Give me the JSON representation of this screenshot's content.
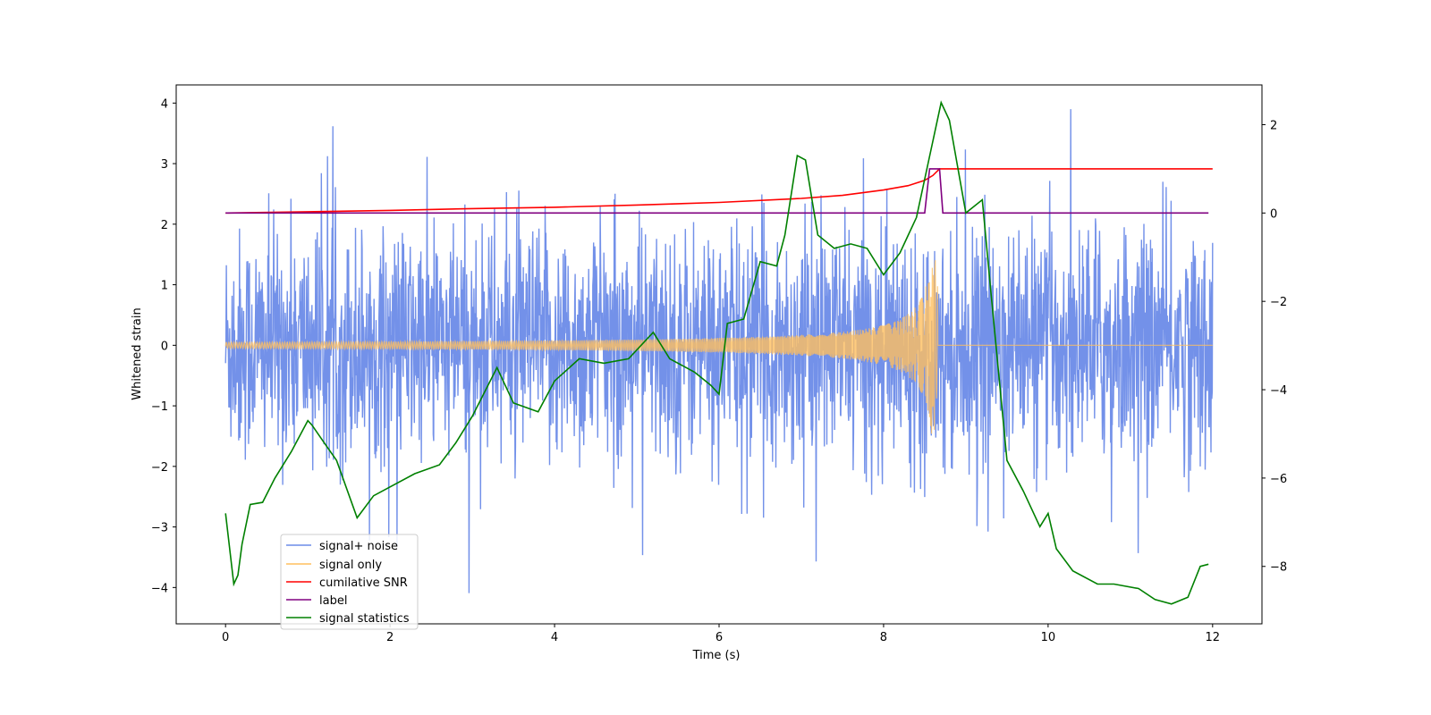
{
  "chart_data": {
    "type": "line",
    "title": "",
    "xlabel": "Time (s)",
    "ylabel_left": "Whitened strain",
    "ylabel_right": "",
    "xlim": [
      -0.6,
      12.6
    ],
    "ylim_left": [
      -4.6,
      4.3
    ],
    "ylim_right": [
      -9.3,
      2.9
    ],
    "x_ticks": [
      0,
      2,
      4,
      6,
      8,
      10,
      12
    ],
    "x_tick_labels": [
      "0",
      "2",
      "4",
      "6",
      "8",
      "10",
      "12"
    ],
    "y_left_ticks": [
      -4,
      -3,
      -2,
      -1,
      0,
      1,
      2,
      3,
      4
    ],
    "y_left_tick_labels": [
      "−4",
      "−3",
      "−2",
      "−1",
      "0",
      "1",
      "2",
      "3",
      "4"
    ],
    "y_right_ticks": [
      -8,
      -6,
      -4,
      -2,
      0,
      2
    ],
    "y_right_tick_labels": [
      "−8",
      "−6",
      "−4",
      "−2",
      "0",
      "2"
    ],
    "legend_position": "lower-left",
    "legend": [
      {
        "label": "signal+ noise",
        "color": "#6b8be8"
      },
      {
        "label": "signal only",
        "color": "#ffbf5f"
      },
      {
        "label": "cumilative SNR",
        "color": "#ff0000"
      },
      {
        "label": "label",
        "color": "#800080"
      },
      {
        "label": "signal statistics",
        "color": "#008000"
      }
    ],
    "series": [
      {
        "name": "signal+ noise",
        "axis": "left",
        "color": "#6b8be8",
        "note": "white noise, amplitude range approx -4.2 to 3.9, 0 to 12 s",
        "x_range": [
          0,
          12
        ],
        "y_range": [
          -4.2,
          3.9
        ]
      },
      {
        "name": "signal only",
        "axis": "left",
        "color": "#ffbf5f",
        "note": "chirp growing in amplitude, peak ~1.5 near 8.66 s, zero after",
        "x_range": [
          0,
          12
        ],
        "peak_time": 8.66,
        "peak_amplitude": 1.5
      },
      {
        "name": "cumilative SNR",
        "axis": "right",
        "color": "#ff0000",
        "x": [
          0,
          1,
          2,
          3,
          4,
          5,
          6,
          7,
          7.5,
          8,
          8.3,
          8.5,
          8.6,
          8.68,
          12
        ],
        "y": [
          0.0,
          0.03,
          0.06,
          0.1,
          0.13,
          0.18,
          0.24,
          0.33,
          0.4,
          0.52,
          0.62,
          0.74,
          0.85,
          1.0,
          1.0
        ]
      },
      {
        "name": "label",
        "axis": "right",
        "color": "#800080",
        "x": [
          0,
          8.5,
          8.56,
          8.68,
          8.72,
          11.95
        ],
        "y": [
          0,
          0,
          1,
          1,
          0,
          0
        ]
      },
      {
        "name": "signal statistics",
        "axis": "right",
        "color": "#008000",
        "x": [
          0,
          0.1,
          0.15,
          0.2,
          0.3,
          0.45,
          0.6,
          0.8,
          1.0,
          1.05,
          1.2,
          1.35,
          1.6,
          1.8,
          2.0,
          2.3,
          2.6,
          2.8,
          3.0,
          3.3,
          3.5,
          3.8,
          4.0,
          4.3,
          4.6,
          4.9,
          5.2,
          5.4,
          5.7,
          5.9,
          6.0,
          6.1,
          6.3,
          6.5,
          6.7,
          6.8,
          6.95,
          7.05,
          7.2,
          7.4,
          7.6,
          7.8,
          8.0,
          8.2,
          8.4,
          8.55,
          8.7,
          8.8,
          9.0,
          9.2,
          9.3,
          9.5,
          9.7,
          9.9,
          10.0,
          10.1,
          10.3,
          10.6,
          10.8,
          11.1,
          11.3,
          11.5,
          11.7,
          11.85,
          11.95
        ],
        "y": [
          -6.8,
          -8.4,
          -8.2,
          -7.5,
          -6.6,
          -6.55,
          -6.0,
          -5.4,
          -4.7,
          -4.8,
          -5.2,
          -5.6,
          -6.9,
          -6.4,
          -6.2,
          -5.9,
          -5.7,
          -5.2,
          -4.6,
          -3.5,
          -4.3,
          -4.5,
          -3.8,
          -3.3,
          -3.4,
          -3.3,
          -2.7,
          -3.3,
          -3.6,
          -3.9,
          -4.1,
          -2.5,
          -2.4,
          -1.1,
          -1.2,
          -0.5,
          1.3,
          1.2,
          -0.5,
          -0.8,
          -0.7,
          -0.8,
          -1.4,
          -0.9,
          -0.1,
          1.2,
          2.5,
          2.1,
          0.0,
          0.3,
          -1.7,
          -5.6,
          -6.3,
          -7.1,
          -6.8,
          -7.6,
          -8.1,
          -8.4,
          -8.4,
          -8.5,
          -8.75,
          -8.85,
          -8.7,
          -8.0,
          -7.95
        ]
      }
    ]
  }
}
